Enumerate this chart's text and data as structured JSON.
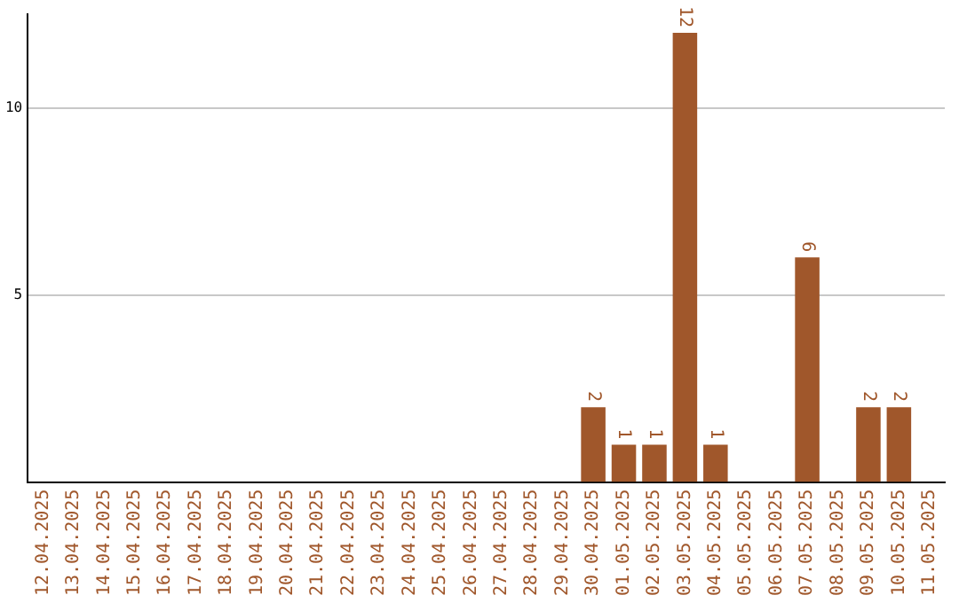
{
  "chart_data": {
    "type": "bar",
    "categories": [
      "12.04.2025",
      "13.04.2025",
      "14.04.2025",
      "15.04.2025",
      "16.04.2025",
      "17.04.2025",
      "18.04.2025",
      "19.04.2025",
      "20.04.2025",
      "21.04.2025",
      "22.04.2025",
      "23.04.2025",
      "24.04.2025",
      "25.04.2025",
      "26.04.2025",
      "27.04.2025",
      "28.04.2025",
      "29.04.2025",
      "30.04.2025",
      "01.05.2025",
      "02.05.2025",
      "03.05.2025",
      "04.05.2025",
      "05.05.2025",
      "06.05.2025",
      "07.05.2025",
      "08.05.2025",
      "09.05.2025",
      "10.05.2025",
      "11.05.2025"
    ],
    "values": [
      0,
      0,
      0,
      0,
      0,
      0,
      0,
      0,
      0,
      0,
      0,
      0,
      0,
      0,
      0,
      0,
      0,
      0,
      2,
      1,
      1,
      12,
      1,
      0,
      0,
      6,
      0,
      2,
      2,
      0
    ],
    "value_labels": [
      null,
      null,
      null,
      null,
      null,
      null,
      null,
      null,
      null,
      null,
      null,
      null,
      null,
      null,
      null,
      null,
      null,
      null,
      "2",
      "1",
      "1",
      "12",
      "1",
      null,
      null,
      "6",
      null,
      "2",
      "2",
      null
    ],
    "color": "#a0572b",
    "ylim": [
      0,
      12.5
    ],
    "yticks": [
      5,
      10
    ],
    "grid": "y",
    "legend": false
  }
}
